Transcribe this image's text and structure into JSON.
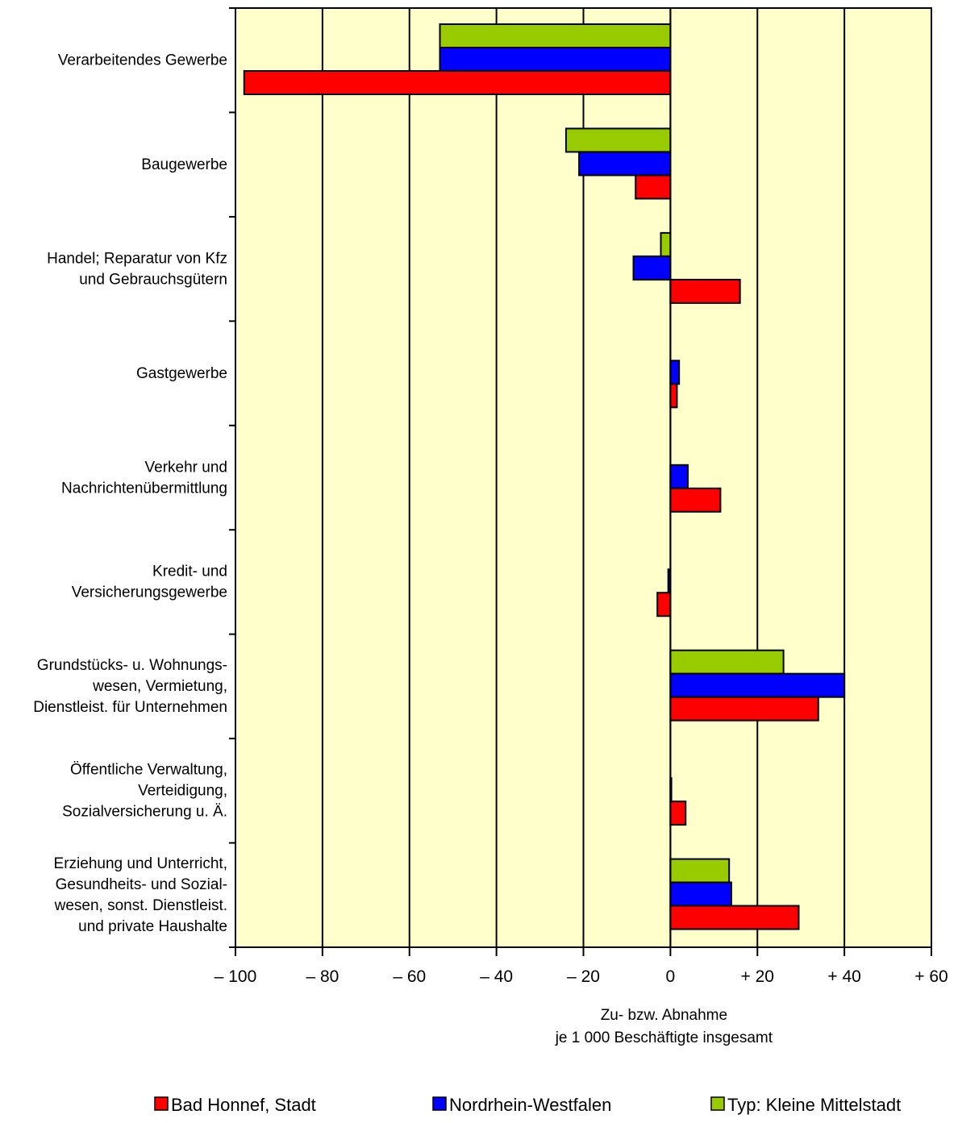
{
  "chart_data": {
    "type": "bar",
    "orientation": "horizontal",
    "categories": [
      [
        "Verarbeitendes Gewerbe"
      ],
      [
        "Baugewerbe"
      ],
      [
        "Handel; Reparatur von Kfz",
        "und Gebrauchsgütern"
      ],
      [
        "Gastgewerbe"
      ],
      [
        "Verkehr und",
        "Nachrichtenübermittlung"
      ],
      [
        "Kredit- und",
        "Versicherungsgewerbe"
      ],
      [
        "Grundstücks- u. Wohnungs-",
        "wesen, Vermietung,",
        "Dienstleist. für Unternehmen"
      ],
      [
        "Öffentliche Verwaltung,",
        "Verteidigung,",
        "Sozialversicherung u. Ä."
      ],
      [
        "Erziehung und Unterricht,",
        "Gesundheits- und Sozial-",
        "wesen, sonst. Dienstleist.",
        "und private Haushalte"
      ]
    ],
    "series": [
      {
        "name": "Typ: Kleine Mittelstadt",
        "color": "#99cc00",
        "values": [
          -53,
          -24,
          -2.2,
          0,
          0,
          0,
          26,
          0,
          13.5
        ]
      },
      {
        "name": "Nordrhein-Westfalen",
        "color": "#0000ff",
        "values": [
          -53,
          -21,
          -8.5,
          2,
          4,
          -0.5,
          40,
          0.2,
          14
        ]
      },
      {
        "name": "Bad Honnef, Stadt",
        "color": "#ff0000",
        "values": [
          -98,
          -8,
          16,
          1.5,
          11.5,
          -3,
          34,
          3.5,
          29.5
        ]
      }
    ],
    "legend_order": [
      2,
      1,
      0
    ],
    "xlim": [
      -100,
      60
    ],
    "xticks": [
      -100,
      -80,
      -60,
      -40,
      -20,
      0,
      20,
      40,
      60
    ],
    "xtick_labels": [
      "– 100",
      "– 80",
      "– 60",
      "– 40",
      "– 20",
      "0",
      "+ 20",
      "+ 40",
      "+ 60"
    ],
    "xlabel": [
      "Zu- bzw. Abnahme",
      "je 1 000 Beschäftigte insgesamt"
    ],
    "plot_background": "#ffffcc",
    "grid": true,
    "legend_position": "bottom"
  }
}
